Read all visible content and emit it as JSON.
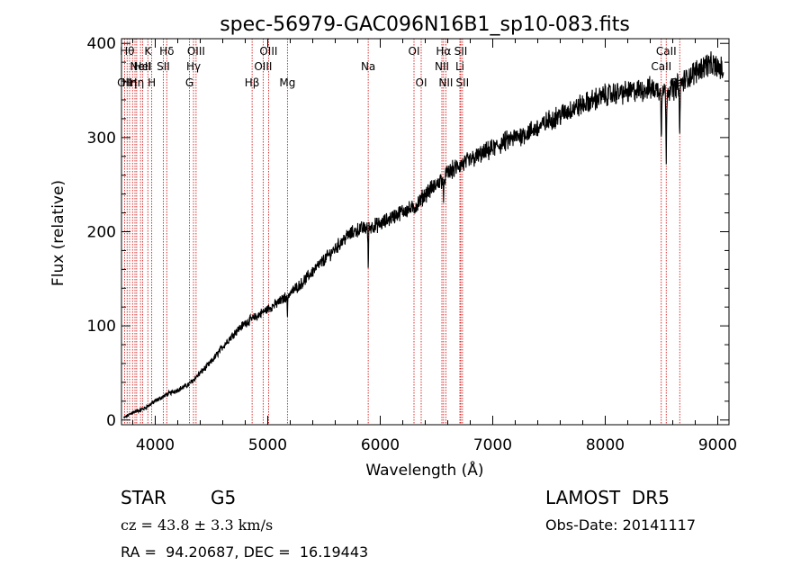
{
  "chart_data": {
    "type": "line",
    "title": "spec-56979-GAC096N16B1_sp10-083.fits",
    "xlabel": "Wavelength (Å)",
    "ylabel": "Flux (relative)",
    "xlim": [
      3700,
      9100
    ],
    "ylim": [
      -5,
      405
    ],
    "x_ticks": [
      4000,
      5000,
      6000,
      7000,
      8000,
      9000
    ],
    "y_ticks": [
      0,
      100,
      200,
      300,
      400
    ],
    "grid": false,
    "series": [
      {
        "x": [
          3720,
          3800,
          3900,
          4000,
          4100,
          4200,
          4300,
          4400,
          4500,
          4600,
          4700,
          4800,
          4900,
          5000,
          5100,
          5200,
          5300,
          5400,
          5500,
          5600,
          5700,
          5800,
          5900,
          6000,
          6100,
          6200,
          6300,
          6400,
          6500,
          6600,
          6700,
          6800,
          6900,
          7000,
          7100,
          7200,
          7300,
          7400,
          7500,
          7600,
          7700,
          7800,
          7900,
          8000,
          8100,
          8200,
          8300,
          8400,
          8500,
          8600,
          8700,
          8800,
          8900,
          9000,
          9050
        ],
        "y": [
          2,
          8,
          12,
          20,
          27,
          32,
          38,
          50,
          62,
          78,
          92,
          103,
          110,
          118,
          125,
          135,
          145,
          158,
          170,
          182,
          195,
          202,
          205,
          208,
          215,
          222,
          225,
          240,
          250,
          262,
          270,
          276,
          282,
          288,
          295,
          300,
          305,
          310,
          318,
          324,
          330,
          335,
          340,
          345,
          347,
          348,
          350,
          352,
          350,
          352,
          360,
          370,
          378,
          375,
          370
        ]
      }
    ],
    "absorption_features": [
      {
        "x": 5893,
        "depth": 40
      },
      {
        "x": 6563,
        "depth": 30
      },
      {
        "x": 8498,
        "depth": 45
      },
      {
        "x": 8542,
        "depth": 85
      },
      {
        "x": 8662,
        "depth": 65
      },
      {
        "x": 5175,
        "depth": 20
      }
    ],
    "reference_lines": [
      {
        "x": 3727,
        "label": "OII",
        "row": 3
      },
      {
        "x": 3750,
        "label": "Hθ",
        "row": 1
      },
      {
        "x": 3772,
        "label": "Hη",
        "row": 3
      },
      {
        "x": 3798,
        "label": "",
        "row": 0
      },
      {
        "x": 3820,
        "label": "",
        "row": 0
      },
      {
        "x": 3835,
        "label": "Hη",
        "row": 3
      },
      {
        "x": 3869,
        "label": "NeII",
        "row": 2
      },
      {
        "x": 3889,
        "label": "HeI",
        "row": 2
      },
      {
        "x": 3934,
        "label": "K",
        "row": 1
      },
      {
        "x": 3969,
        "label": "H",
        "row": 3
      },
      {
        "x": 4072,
        "label": "SII",
        "row": 2
      },
      {
        "x": 4102,
        "label": "Hδ",
        "row": 1
      },
      {
        "x": 4304,
        "label": "G",
        "row": 3
      },
      {
        "x": 4340,
        "label": "Hγ",
        "row": 2
      },
      {
        "x": 4363,
        "label": "OIII",
        "row": 1
      },
      {
        "x": 4861,
        "label": "Hβ",
        "row": 3
      },
      {
        "x": 4959,
        "label": "OIII",
        "row": 2
      },
      {
        "x": 5007,
        "label": "OIII",
        "row": 1
      },
      {
        "x": 5175,
        "label": "Mg",
        "row": 3
      },
      {
        "x": 5893,
        "label": "Na",
        "row": 2
      },
      {
        "x": 6300,
        "label": "OI",
        "row": 1
      },
      {
        "x": 6364,
        "label": "OI",
        "row": 3
      },
      {
        "x": 6548,
        "label": "NII",
        "row": 2
      },
      {
        "x": 6563,
        "label": "Hα",
        "row": 1
      },
      {
        "x": 6583,
        "label": "NII",
        "row": 3
      },
      {
        "x": 6708,
        "label": "Li",
        "row": 2
      },
      {
        "x": 6716,
        "label": "SII",
        "row": 1
      },
      {
        "x": 6731,
        "label": "SII",
        "row": 3
      },
      {
        "x": 8498,
        "label": "CaII",
        "row": 2
      },
      {
        "x": 8542,
        "label": "CaII",
        "row": 1
      },
      {
        "x": 8662,
        "label": "CaII",
        "row": 3
      }
    ],
    "colors": {
      "spectrum": "#000000",
      "reference_lines": "#cc0000",
      "axes": "#000000"
    }
  },
  "info": {
    "object_class": "STAR",
    "subclass": "G5",
    "survey": "LAMOST  DR5",
    "cz": "cz = 43.8 ± 3.3 km/s",
    "obs_date": "Obs-Date: 20141117",
    "coords": "RA =  94.20687, DEC =  16.19443"
  }
}
